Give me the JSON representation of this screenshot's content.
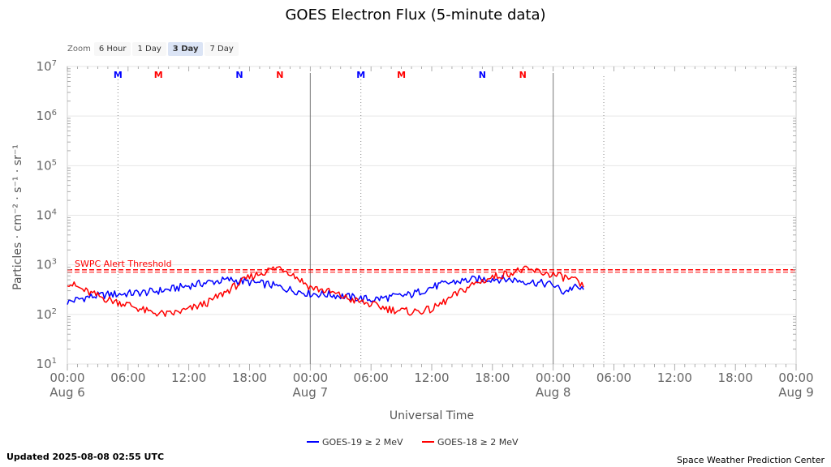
{
  "chart_data": {
    "type": "line",
    "title": "GOES Electron Flux (5-minute data)",
    "xlabel": "Universal Time",
    "ylabel": "Particles · cm⁻² · s⁻¹ · sr⁻¹",
    "yscale": "log",
    "ylim_exp": [
      1,
      7
    ],
    "y_ticks": [
      {
        "exp": 1,
        "base": "10",
        "sup": "1"
      },
      {
        "exp": 2,
        "base": "10",
        "sup": "2"
      },
      {
        "exp": 3,
        "base": "10",
        "sup": "3"
      },
      {
        "exp": 4,
        "base": "10",
        "sup": "4"
      },
      {
        "exp": 5,
        "base": "10",
        "sup": "5"
      },
      {
        "exp": 6,
        "base": "10",
        "sup": "6"
      },
      {
        "exp": 7,
        "base": "10",
        "sup": "7"
      }
    ],
    "x_range_hours": [
      0,
      72
    ],
    "x_ticks": [
      {
        "h": 0,
        "time": "00:00",
        "date": "Aug 6"
      },
      {
        "h": 6,
        "time": "06:00",
        "date": ""
      },
      {
        "h": 12,
        "time": "12:00",
        "date": ""
      },
      {
        "h": 18,
        "time": "18:00",
        "date": ""
      },
      {
        "h": 24,
        "time": "00:00",
        "date": "Aug 7"
      },
      {
        "h": 30,
        "time": "06:00",
        "date": ""
      },
      {
        "h": 36,
        "time": "12:00",
        "date": ""
      },
      {
        "h": 42,
        "time": "18:00",
        "date": ""
      },
      {
        "h": 48,
        "time": "00:00",
        "date": "Aug 8"
      },
      {
        "h": 54,
        "time": "06:00",
        "date": ""
      },
      {
        "h": 60,
        "time": "12:00",
        "date": ""
      },
      {
        "h": 66,
        "time": "18:00",
        "date": ""
      },
      {
        "h": 72,
        "time": "00:00",
        "date": "Aug 9"
      }
    ],
    "day_lines_hours": [
      24,
      48
    ],
    "dotted_lines_hours": [
      5,
      29,
      53
    ],
    "threshold": {
      "label": "SWPC Alert Threshold",
      "exp": 2.9,
      "color": "#ff0000"
    },
    "markers": [
      {
        "h": 5,
        "label": "M",
        "color": "#0000ff"
      },
      {
        "h": 9,
        "label": "M",
        "color": "#ff0000"
      },
      {
        "h": 17,
        "label": "N",
        "color": "#0000ff"
      },
      {
        "h": 21,
        "label": "N",
        "color": "#ff0000"
      },
      {
        "h": 29,
        "label": "M",
        "color": "#0000ff"
      },
      {
        "h": 33,
        "label": "M",
        "color": "#ff0000"
      },
      {
        "h": 41,
        "label": "N",
        "color": "#0000ff"
      },
      {
        "h": 45,
        "label": "N",
        "color": "#ff0000"
      }
    ],
    "series": [
      {
        "name": "GOES-19 ≥ 2 MeV",
        "color": "#0000ff",
        "x": [
          0,
          2,
          4,
          6,
          8,
          10,
          12,
          14,
          16,
          18,
          20,
          22,
          24,
          26,
          28,
          30,
          32,
          34,
          36,
          38,
          40,
          42,
          44,
          46,
          48,
          49,
          50,
          51
        ],
        "exp": [
          2.25,
          2.35,
          2.4,
          2.42,
          2.45,
          2.5,
          2.58,
          2.65,
          2.7,
          2.65,
          2.6,
          2.5,
          2.42,
          2.4,
          2.35,
          2.3,
          2.35,
          2.4,
          2.55,
          2.65,
          2.7,
          2.72,
          2.7,
          2.65,
          2.6,
          2.45,
          2.55,
          2.5
        ]
      },
      {
        "name": "GOES-18 ≥ 2 MeV",
        "color": "#ff0000",
        "x": [
          0,
          2,
          4,
          6,
          8,
          10,
          12,
          14,
          16,
          18,
          20,
          21,
          22,
          24,
          26,
          28,
          30,
          32,
          34,
          36,
          38,
          40,
          42,
          44,
          45,
          46,
          48,
          50,
          51
        ],
        "exp": [
          2.65,
          2.45,
          2.3,
          2.2,
          2.05,
          2.0,
          2.1,
          2.25,
          2.5,
          2.75,
          2.9,
          2.95,
          2.85,
          2.55,
          2.45,
          2.3,
          2.2,
          2.1,
          2.05,
          2.1,
          2.35,
          2.6,
          2.75,
          2.85,
          2.9,
          2.88,
          2.8,
          2.7,
          2.55
        ]
      }
    ]
  },
  "zoom": {
    "label": "Zoom",
    "options": [
      "6 Hour",
      "1 Day",
      "3 Day",
      "7 Day"
    ],
    "active": "3 Day"
  },
  "footer": {
    "updated": "Updated 2025-08-08 02:55 UTC",
    "source": "Space Weather Prediction Center"
  }
}
